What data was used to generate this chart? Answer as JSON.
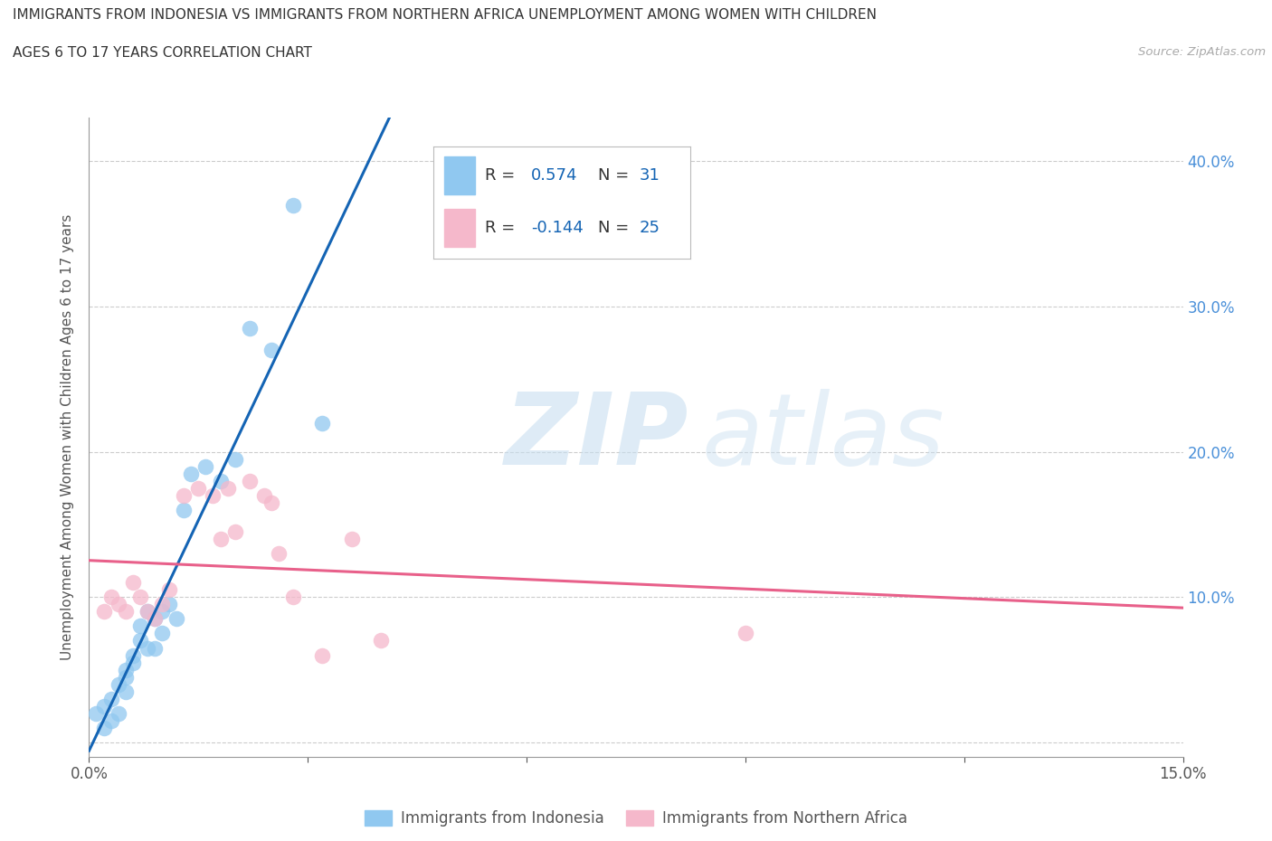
{
  "title_line1": "IMMIGRANTS FROM INDONESIA VS IMMIGRANTS FROM NORTHERN AFRICA UNEMPLOYMENT AMONG WOMEN WITH CHILDREN",
  "title_line2": "AGES 6 TO 17 YEARS CORRELATION CHART",
  "source": "Source: ZipAtlas.com",
  "ylabel": "Unemployment Among Women with Children Ages 6 to 17 years",
  "xlim": [
    0.0,
    0.15
  ],
  "ylim": [
    -0.01,
    0.43
  ],
  "R_indonesia": 0.574,
  "N_indonesia": 31,
  "R_n_africa": -0.144,
  "N_n_africa": 25,
  "color_indonesia": "#90c8f0",
  "color_n_africa": "#f5b8cb",
  "line_color_indonesia": "#1464b4",
  "line_color_n_africa": "#e8608a",
  "legend_label_1": "Immigrants from Indonesia",
  "legend_label_2": "Immigrants from Northern Africa",
  "indonesia_x": [
    0.001,
    0.002,
    0.002,
    0.003,
    0.003,
    0.004,
    0.004,
    0.005,
    0.005,
    0.005,
    0.006,
    0.006,
    0.007,
    0.007,
    0.008,
    0.008,
    0.009,
    0.009,
    0.01,
    0.01,
    0.011,
    0.012,
    0.013,
    0.014,
    0.016,
    0.018,
    0.02,
    0.022,
    0.025,
    0.028,
    0.032
  ],
  "indonesia_y": [
    0.02,
    0.01,
    0.025,
    0.015,
    0.03,
    0.02,
    0.04,
    0.035,
    0.045,
    0.05,
    0.06,
    0.055,
    0.07,
    0.08,
    0.09,
    0.065,
    0.085,
    0.065,
    0.075,
    0.09,
    0.095,
    0.085,
    0.16,
    0.185,
    0.19,
    0.18,
    0.195,
    0.285,
    0.27,
    0.37,
    0.22
  ],
  "n_africa_x": [
    0.002,
    0.003,
    0.004,
    0.005,
    0.006,
    0.007,
    0.008,
    0.009,
    0.01,
    0.011,
    0.013,
    0.015,
    0.017,
    0.018,
    0.019,
    0.02,
    0.022,
    0.024,
    0.025,
    0.026,
    0.028,
    0.032,
    0.036,
    0.04,
    0.09
  ],
  "n_africa_y": [
    0.09,
    0.1,
    0.095,
    0.09,
    0.11,
    0.1,
    0.09,
    0.085,
    0.095,
    0.105,
    0.17,
    0.175,
    0.17,
    0.14,
    0.175,
    0.145,
    0.18,
    0.17,
    0.165,
    0.13,
    0.1,
    0.06,
    0.14,
    0.07,
    0.075
  ]
}
